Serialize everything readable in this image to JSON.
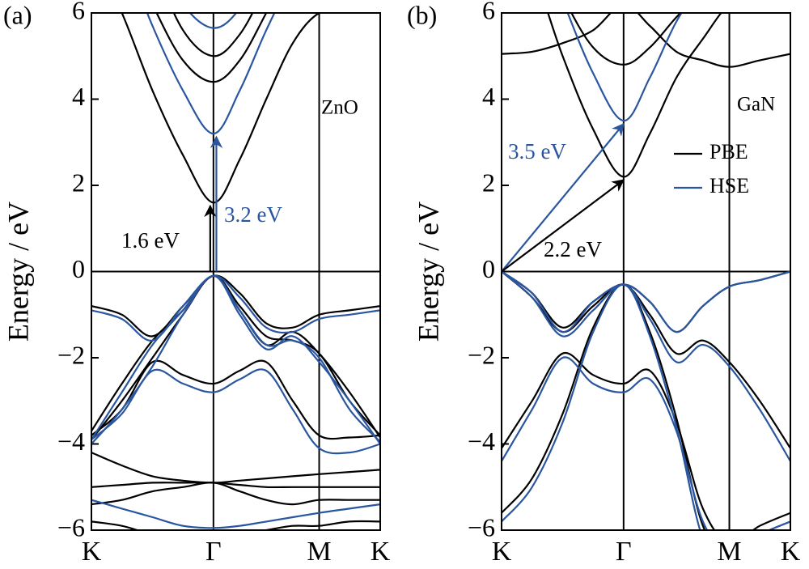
{
  "chart_data": [
    {
      "type": "line",
      "panel_label": "(a)",
      "ylabel": "Energy / eV",
      "x": [
        0,
        0.333,
        0.667,
        1.0,
        1.333,
        1.62,
        1.91,
        2.2,
        2.488,
        2.82,
        3.155
      ],
      "xlim": [
        0,
        3.155
      ],
      "xticks": [
        {
          "value": 0,
          "label": "K"
        },
        {
          "value": 1.333,
          "label": "Γ"
        },
        {
          "value": 2.488,
          "label": "M"
        },
        {
          "value": 3.155,
          "label": "K"
        }
      ],
      "ylim": [
        -6,
        6
      ],
      "yticks": [
        {
          "value": -6,
          "label": "−6"
        },
        {
          "value": -4,
          "label": "−4"
        },
        {
          "value": -2,
          "label": "−2"
        },
        0,
        2,
        4,
        6
      ],
      "reference_line": 0,
      "legend": false,
      "annotations": [
        {
          "text": "ZnO",
          "color": "#000000"
        },
        {
          "text": "1.6 eV",
          "color": "#000000"
        },
        {
          "text": "3.2 eV",
          "color": "#2a56a0"
        }
      ],
      "series": [
        {
          "name": "PBE",
          "color": "#000000",
          "values": [
            [
              7.5,
              6.0,
              4.2,
              2.7,
              1.6,
              2.6,
              4.0,
              5.3,
              6.0,
              6.1,
              6.2
            ],
            [
              9,
              7.8,
              6.2,
              4.9,
              4.4,
              4.9,
              6.0,
              7.2,
              8,
              8,
              8
            ],
            [
              10,
              9,
              7.2,
              5.6,
              5.0,
              5.5,
              6.6,
              7.6,
              8,
              8,
              8
            ],
            [
              -0.8,
              -1.0,
              -1.5,
              -0.8,
              -0.1,
              -0.5,
              -1.2,
              -1.3,
              -1.0,
              -0.9,
              -0.8
            ],
            [
              -3.7,
              -2.6,
              -1.6,
              -0.9,
              -0.1,
              -0.8,
              -1.5,
              -1.6,
              -1.9,
              -3.0,
              -3.8
            ],
            [
              -3.9,
              -3.0,
              -2.0,
              -1.0,
              -0.1,
              -0.9,
              -1.7,
              -1.4,
              -1.9,
              -2.8,
              -3.85
            ],
            [
              -3.8,
              -3.2,
              -2.1,
              -2.4,
              -2.6,
              -2.3,
              -2.1,
              -3.0,
              -3.8,
              -3.85,
              -3.8
            ],
            [
              -4.2,
              -4.5,
              -4.75,
              -4.85,
              -4.9,
              -4.85,
              -4.8,
              -4.75,
              -4.7,
              -4.65,
              -4.6
            ],
            [
              -5.0,
              -4.95,
              -4.9,
              -4.9,
              -4.9,
              -4.95,
              -5.0,
              -5.0,
              -5.0,
              -5.0,
              -5.0
            ],
            [
              -5.4,
              -5.3,
              -5.1,
              -5.0,
              -4.9,
              -5.1,
              -5.3,
              -5.4,
              -5.3,
              -5.3,
              -5.3
            ],
            [
              -5.8,
              -5.9,
              -6.1,
              -6.2,
              -6.2,
              -6.1,
              -6.0,
              -5.9,
              -5.9,
              -5.8,
              -5.8
            ]
          ]
        },
        {
          "name": "HSE",
          "color": "#2a56a0",
          "values": [
            [
              9,
              7.5,
              5.7,
              4.2,
              3.2,
              4.2,
              5.6,
              6.8,
              7.5,
              7.6,
              7.7
            ],
            [
              10,
              9,
              7.5,
              6.2,
              5.65,
              6.1,
              7.2,
              8,
              8,
              8,
              8
            ],
            [
              -0.9,
              -1.1,
              -1.6,
              -0.8,
              -0.1,
              -0.6,
              -1.3,
              -1.4,
              -1.1,
              -1.0,
              -0.9
            ],
            [
              -3.9,
              -2.8,
              -1.7,
              -0.9,
              -0.1,
              -0.9,
              -1.7,
              -1.6,
              -2.0,
              -3.2,
              -3.95
            ],
            [
              -4.0,
              -3.2,
              -2.2,
              -1.0,
              -0.1,
              -1.0,
              -1.8,
              -1.5,
              -2.1,
              -3.0,
              -4.0
            ],
            [
              -3.9,
              -3.3,
              -2.3,
              -2.6,
              -2.8,
              -2.5,
              -2.3,
              -3.2,
              -4.1,
              -4.2,
              -4.0
            ],
            [
              -5.3,
              -5.5,
              -5.7,
              -5.9,
              -5.95,
              -5.9,
              -5.8,
              -5.7,
              -5.6,
              -5.5,
              -5.4
            ]
          ]
        }
      ]
    },
    {
      "type": "line",
      "panel_label": "(b)",
      "ylabel": "Energy / eV",
      "x": [
        0,
        0.333,
        0.667,
        1.0,
        1.333,
        1.62,
        1.91,
        2.2,
        2.488,
        2.82,
        3.155
      ],
      "xlim": [
        0,
        3.155
      ],
      "xticks": [
        {
          "value": 0,
          "label": "K"
        },
        {
          "value": 1.333,
          "label": "Γ"
        },
        {
          "value": 2.488,
          "label": "M"
        },
        {
          "value": 3.155,
          "label": "K"
        }
      ],
      "ylim": [
        -6,
        6
      ],
      "yticks": [
        {
          "value": -6,
          "label": "−6"
        },
        {
          "value": -4,
          "label": "−4"
        },
        {
          "value": -2,
          "label": "−2"
        },
        0,
        2,
        4,
        6
      ],
      "reference_line": 0,
      "legend": true,
      "annotations": [
        {
          "text": "GaN",
          "color": "#000000"
        },
        {
          "text": "3.5 eV",
          "color": "#2a56a0"
        },
        {
          "text": "2.2 eV",
          "color": "#000000"
        }
      ],
      "series": [
        {
          "name": "PBE",
          "color": "#000000",
          "values": [
            [
              8,
              7.0,
              5.0,
              3.3,
              2.2,
              3.2,
              4.5,
              5.4,
              6.2,
              6.5,
              6.8
            ],
            [
              5.05,
              5.1,
              5.3,
              5.6,
              6.2,
              5.7,
              5.1,
              4.9,
              4.75,
              4.9,
              5.05
            ],
            [
              9,
              8,
              6.4,
              5.2,
              4.8,
              5.2,
              5.9,
              6.5,
              6.8,
              7,
              7
            ],
            [
              0,
              -0.5,
              -1.3,
              -0.7,
              -0.3,
              -0.7,
              -1.4,
              -0.8,
              -0.35,
              -0.2,
              0
            ],
            [
              0,
              -0.6,
              -1.4,
              -0.8,
              -0.3,
              -1.0,
              -1.9,
              -1.6,
              -2.1,
              -3.0,
              -4.1
            ],
            [
              -4.1,
              -3.0,
              -1.9,
              -2.4,
              -2.6,
              -2.3,
              -3.5,
              -5.5,
              -6.3,
              -5.9,
              -5.6
            ],
            [
              -5.6,
              -4.8,
              -3.3,
              -1.3,
              -0.3,
              -1.4,
              -3.4,
              -5.9,
              -6.6,
              -6.5,
              -6.3
            ]
          ]
        },
        {
          "name": "HSE",
          "color": "#2a56a0",
          "values": [
            [
              9,
              8.2,
              6.3,
              4.6,
              3.5,
              4.5,
              5.8,
              6.7,
              7.4,
              7.6,
              7.8
            ],
            [
              10,
              9,
              7.6,
              6.5,
              6.0,
              6.5,
              7.3,
              8,
              8,
              8,
              8
            ],
            [
              0,
              -0.5,
              -1.4,
              -0.7,
              -0.3,
              -0.7,
              -1.4,
              -0.8,
              -0.35,
              -0.2,
              0
            ],
            [
              0,
              -0.6,
              -1.5,
              -0.9,
              -0.3,
              -1.1,
              -2.1,
              -1.7,
              -2.2,
              -3.2,
              -4.4
            ],
            [
              -4.4,
              -3.2,
              -2.0,
              -2.6,
              -2.8,
              -2.5,
              -3.7,
              -5.8,
              -6.5,
              -6.1,
              -5.8
            ],
            [
              -5.8,
              -5.0,
              -3.5,
              -1.4,
              -0.3,
              -1.5,
              -3.6,
              -6.2,
              -6.8,
              -6.7,
              -6.5
            ]
          ]
        }
      ]
    }
  ]
}
